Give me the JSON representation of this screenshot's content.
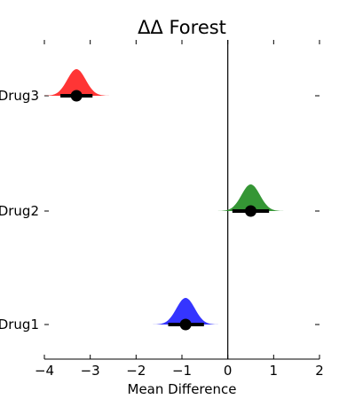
{
  "chart_data": {
    "type": "forest",
    "title": "ΔΔ Forest",
    "xlabel": "Mean Difference",
    "ylabel": "",
    "xlim": [
      -4,
      2
    ],
    "xticks": [
      -4,
      -3,
      -2,
      -1,
      0,
      1,
      2
    ],
    "xtick_labels": [
      "−4",
      "−3",
      "−2",
      "−1",
      "0",
      "1",
      "2"
    ],
    "reference_line": 0,
    "grid": false,
    "legend": "none",
    "categories": [
      "Drug3",
      "Drug2",
      "Drug1"
    ],
    "series": [
      {
        "label": "Drug3",
        "mean": -3.3,
        "ci": [
          -3.65,
          -2.95
        ],
        "spread": 0.2,
        "color": "#ff2a2a"
      },
      {
        "label": "Drug2",
        "mean": 0.5,
        "ci": [
          0.1,
          0.9
        ],
        "spread": 0.2,
        "color": "#2a902a"
      },
      {
        "label": "Drug1",
        "mean": -0.92,
        "ci": [
          -1.3,
          -0.52
        ],
        "spread": 0.2,
        "color": "#2a2aff"
      }
    ]
  }
}
